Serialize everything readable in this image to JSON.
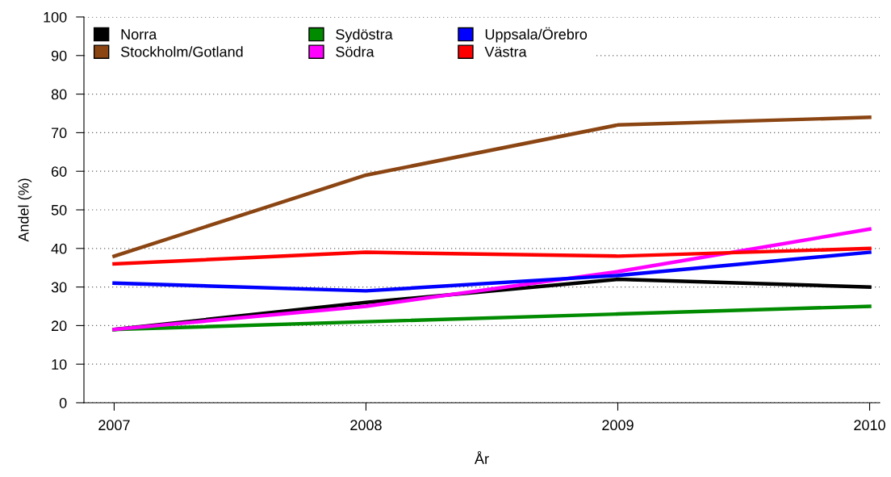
{
  "chart_data": {
    "type": "line",
    "xlabel": "År",
    "ylabel": "Andel (%)",
    "x": [
      2007,
      2008,
      2009,
      2010
    ],
    "xlim": [
      2006.88,
      2010.04
    ],
    "xticks": [
      2007,
      2008,
      2009,
      2010
    ],
    "ylim": [
      0,
      100
    ],
    "yticks": [
      0,
      10,
      20,
      30,
      40,
      50,
      60,
      70,
      80,
      90,
      100
    ],
    "grid": "y",
    "legend": "top left",
    "marker": "none",
    "line_style": "solid",
    "series": [
      {
        "name": "Norra",
        "color": "#000000",
        "values": [
          19,
          26,
          32,
          30
        ]
      },
      {
        "name": "Stockholm/Gotland",
        "color": "#8b4513",
        "values": [
          38,
          59,
          72,
          74
        ]
      },
      {
        "name": "Sydöstra",
        "color": "#008b00",
        "values": [
          19,
          21,
          23,
          25
        ]
      },
      {
        "name": "Södra",
        "color": "#ff00ff",
        "values": [
          19,
          25,
          34,
          45
        ]
      },
      {
        "name": "Uppsala/Örebro",
        "color": "#0000ff",
        "values": [
          31,
          29,
          33,
          39
        ]
      },
      {
        "name": "Västra",
        "color": "#ff0000",
        "values": [
          36,
          39,
          38,
          40
        ]
      }
    ]
  }
}
